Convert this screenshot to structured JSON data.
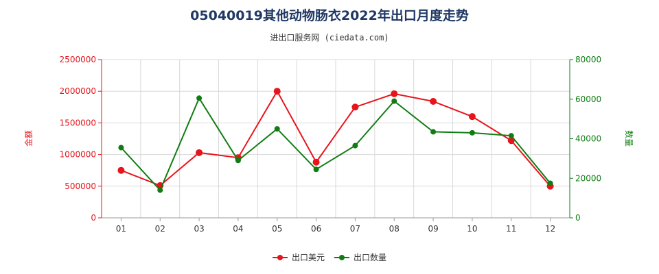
{
  "title": "05040019其他动物肠衣2022年出口月度走势",
  "subtitle": "进出口服务网 (ciedata.com)",
  "colors": {
    "value": "#e8141b",
    "quantity": "#0f7d12"
  },
  "chart_data": {
    "type": "line",
    "categories": [
      "01",
      "02",
      "03",
      "04",
      "05",
      "06",
      "07",
      "08",
      "09",
      "10",
      "11",
      "12"
    ],
    "series": [
      {
        "name": "出口美元",
        "axis": "left",
        "values": [
          750000,
          510000,
          1030000,
          950000,
          2000000,
          880000,
          1750000,
          1960000,
          1840000,
          1600000,
          1220000,
          500000
        ]
      },
      {
        "name": "出口数量",
        "axis": "right",
        "values": [
          35500,
          14000,
          60500,
          29000,
          45000,
          24500,
          36500,
          59000,
          43500,
          43000,
          41500,
          17500
        ]
      }
    ],
    "left_axis": {
      "label": "金额",
      "ylim": [
        0,
        2500000
      ],
      "ticks": [
        "0",
        "500000",
        "1000000",
        "1500000",
        "2000000",
        "2500000"
      ]
    },
    "right_axis": {
      "label": "数量",
      "ylim": [
        0,
        80000
      ],
      "ticks": [
        "0",
        "20000",
        "40000",
        "60000",
        "80000"
      ]
    },
    "grid": true,
    "legend": "bottom-center"
  }
}
